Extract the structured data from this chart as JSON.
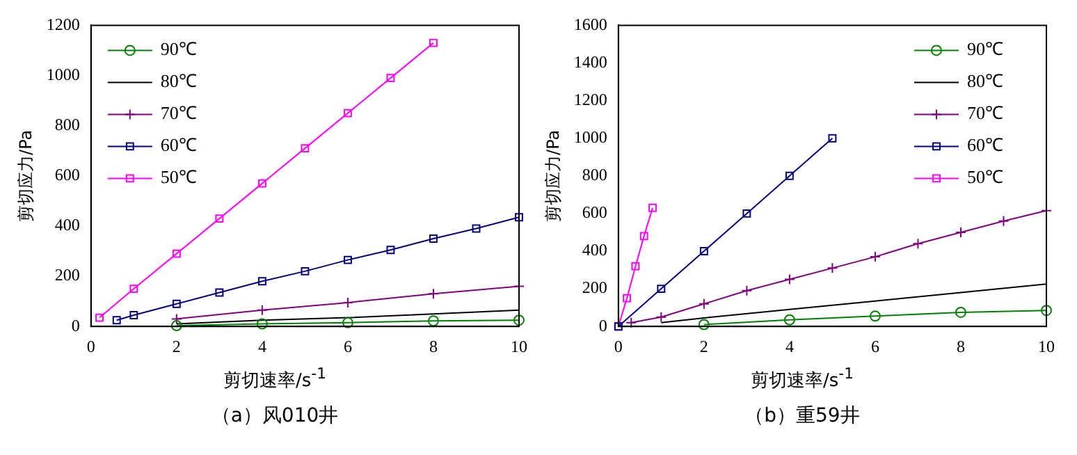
{
  "chart_data": [
    {
      "type": "line",
      "xlabel": "剪切速率/s$^{-1}$",
      "ylabel": "剪切应力/Pa",
      "annotations": [
        "（a）风010井"
      ],
      "xlim": [
        0,
        10
      ],
      "xticks": [
        0,
        2,
        4,
        6,
        8,
        10
      ],
      "ylim": [
        0,
        1200
      ],
      "yticks": [
        0,
        200,
        400,
        600,
        800,
        1000,
        1200
      ],
      "grid": false,
      "legend": "top left",
      "line_style": "solid",
      "series": [
        {
          "name": "90℃",
          "color": "#008000",
          "marker": "circle",
          "x": [
            2,
            4,
            6,
            8,
            10
          ],
          "values": [
            3,
            10,
            15,
            22,
            25
          ]
        },
        {
          "name": "80℃",
          "color": "#000000",
          "marker": "none",
          "x": [
            2,
            4,
            6,
            8,
            10
          ],
          "values": [
            10,
            25,
            35,
            50,
            65
          ]
        },
        {
          "name": "70℃",
          "color": "#800080",
          "marker": "cross",
          "x": [
            2,
            4,
            6,
            8,
            10
          ],
          "values": [
            30,
            65,
            95,
            130,
            160
          ]
        },
        {
          "name": "60℃",
          "color": "#000080",
          "marker": "square",
          "x": [
            0.6,
            1,
            2,
            3,
            4,
            5,
            6,
            7,
            8,
            9,
            10
          ],
          "values": [
            25,
            45,
            90,
            135,
            180,
            220,
            265,
            305,
            350,
            390,
            435
          ]
        },
        {
          "name": "50℃",
          "color": "#ff00ff",
          "marker": "square",
          "x": [
            0.2,
            1,
            2,
            3,
            4,
            5,
            6,
            7,
            8
          ],
          "values": [
            35,
            150,
            290,
            430,
            570,
            710,
            850,
            990,
            1130
          ]
        }
      ]
    },
    {
      "type": "line",
      "xlabel": "剪切速率/s$^{-1}$",
      "ylabel": "剪切应力/Pa",
      "annotations": [
        "（b）重59井"
      ],
      "xlim": [
        0,
        10
      ],
      "xticks": [
        0,
        2,
        4,
        6,
        8,
        10
      ],
      "ylim": [
        0,
        1600
      ],
      "yticks": [
        0,
        200,
        400,
        600,
        800,
        1000,
        1200,
        1400,
        1600
      ],
      "grid": false,
      "legend": "top right",
      "line_style": "solid",
      "series": [
        {
          "name": "90℃",
          "color": "#008000",
          "marker": "circle",
          "x": [
            2,
            4,
            6,
            8,
            10
          ],
          "values": [
            10,
            35,
            55,
            75,
            85
          ]
        },
        {
          "name": "80℃",
          "color": "#000000",
          "marker": "none",
          "x": [
            1,
            2,
            4,
            6,
            8,
            10
          ],
          "values": [
            20,
            45,
            90,
            135,
            180,
            225
          ]
        },
        {
          "name": "70℃",
          "color": "#800080",
          "marker": "cross",
          "x": [
            0.3,
            1,
            2,
            3,
            4,
            5,
            6,
            7,
            8,
            9,
            10
          ],
          "values": [
            20,
            50,
            120,
            190,
            250,
            310,
            370,
            440,
            500,
            560,
            615
          ]
        },
        {
          "name": "60℃",
          "color": "#000080",
          "marker": "square",
          "x": [
            0,
            1,
            2,
            3,
            4,
            5
          ],
          "values": [
            0,
            200,
            400,
            600,
            800,
            1000
          ]
        },
        {
          "name": "50℃",
          "color": "#ff00ff",
          "marker": "square",
          "x": [
            0,
            0.2,
            0.4,
            0.6,
            0.8
          ],
          "values": [
            0,
            150,
            320,
            480,
            630
          ]
        }
      ]
    }
  ]
}
